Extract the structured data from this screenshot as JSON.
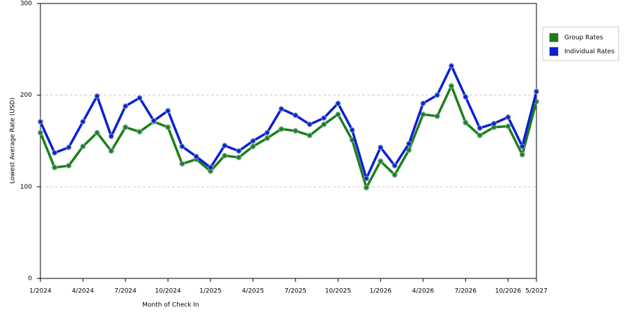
{
  "chart_data": {
    "type": "line",
    "x_label": "Month of Check In",
    "y_label": "Lowest Average Rate (USD)",
    "categories": [
      "1/2024",
      null,
      null,
      "4/2024",
      null,
      null,
      "7/2024",
      null,
      null,
      "10/2024",
      null,
      null,
      "1/2025",
      null,
      null,
      "4/2025",
      null,
      null,
      "7/2025",
      null,
      null,
      "10/2025",
      null,
      null,
      "1/2026",
      null,
      null,
      "4/2026",
      null,
      null,
      "7/2026",
      null,
      null,
      "10/2026",
      null,
      "5/2027"
    ],
    "series": [
      {
        "name": "Group Rates",
        "color": "#1a7f1a",
        "values": [
          159,
          121,
          123,
          144,
          159,
          139,
          165,
          160,
          171,
          165,
          125,
          130,
          117,
          134,
          132,
          144,
          153,
          163,
          161,
          156,
          168,
          179,
          151,
          99,
          128,
          113,
          140,
          179,
          177,
          210,
          170,
          156,
          165,
          166,
          135,
          193
        ]
      },
      {
        "name": "Individual Rates",
        "color": "#0a1fd6",
        "values": [
          171,
          137,
          143,
          171,
          199,
          155,
          188,
          197,
          172,
          183,
          144,
          133,
          121,
          145,
          139,
          150,
          159,
          185,
          178,
          168,
          175,
          191,
          162,
          109,
          143,
          123,
          147,
          191,
          200,
          232,
          198,
          164,
          169,
          176,
          144,
          204
        ]
      }
    ],
    "ylim": [
      0,
      300
    ],
    "yticks": [
      0,
      100,
      200,
      300
    ],
    "grid": true,
    "legend": "right"
  }
}
